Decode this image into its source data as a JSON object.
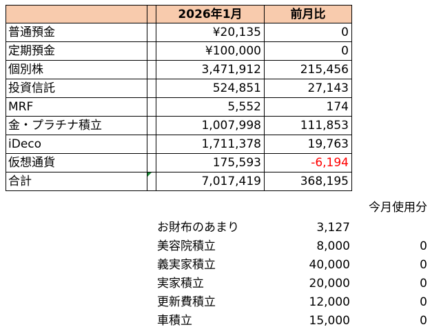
{
  "asset_table": {
    "header": {
      "name": "",
      "value": "2026年1月",
      "diff": "前月比"
    },
    "rows": [
      {
        "name": "普通預金",
        "value": "¥20,135",
        "diff": "0",
        "diff_negative": false
      },
      {
        "name": "定期預金",
        "value": "¥100,000",
        "diff": "0",
        "diff_negative": false
      },
      {
        "name": "個別株",
        "value": "3,471,912",
        "diff": "215,456",
        "diff_negative": false
      },
      {
        "name": "投資信託",
        "value": "524,851",
        "diff": "27,143",
        "diff_negative": false
      },
      {
        "name": "MRF",
        "value": "5,552",
        "diff": "174",
        "diff_negative": false
      },
      {
        "name": "金・プラチナ積立",
        "value": "1,007,998",
        "diff": "111,853",
        "diff_negative": false
      },
      {
        "name": "iDeco",
        "value": "1,711,378",
        "diff": "19,763",
        "diff_negative": false
      },
      {
        "name": "仮想通貨",
        "value": "175,593",
        "diff": "-6,194",
        "diff_negative": true
      },
      {
        "name": "合計",
        "value": "7,017,419",
        "diff": "368,195",
        "diff_negative": false
      }
    ],
    "header_color": "#f8cbad",
    "negative_color": "#ff0000",
    "error_indicator": "green-triangle"
  },
  "usage": {
    "column_header": "今月使用分",
    "rows": [
      {
        "name": "お財布のあまり",
        "amount": "3,127",
        "used": ""
      },
      {
        "name": "美容院積立",
        "amount": "8,000",
        "used": "0"
      },
      {
        "name": "義実家積立",
        "amount": "40,000",
        "used": "0"
      },
      {
        "name": "実家積立",
        "amount": "20,000",
        "used": "0"
      },
      {
        "name": "更新費積立",
        "amount": "12,000",
        "used": "0"
      },
      {
        "name": "車積立",
        "amount": "15,000",
        "used": "0"
      }
    ]
  }
}
